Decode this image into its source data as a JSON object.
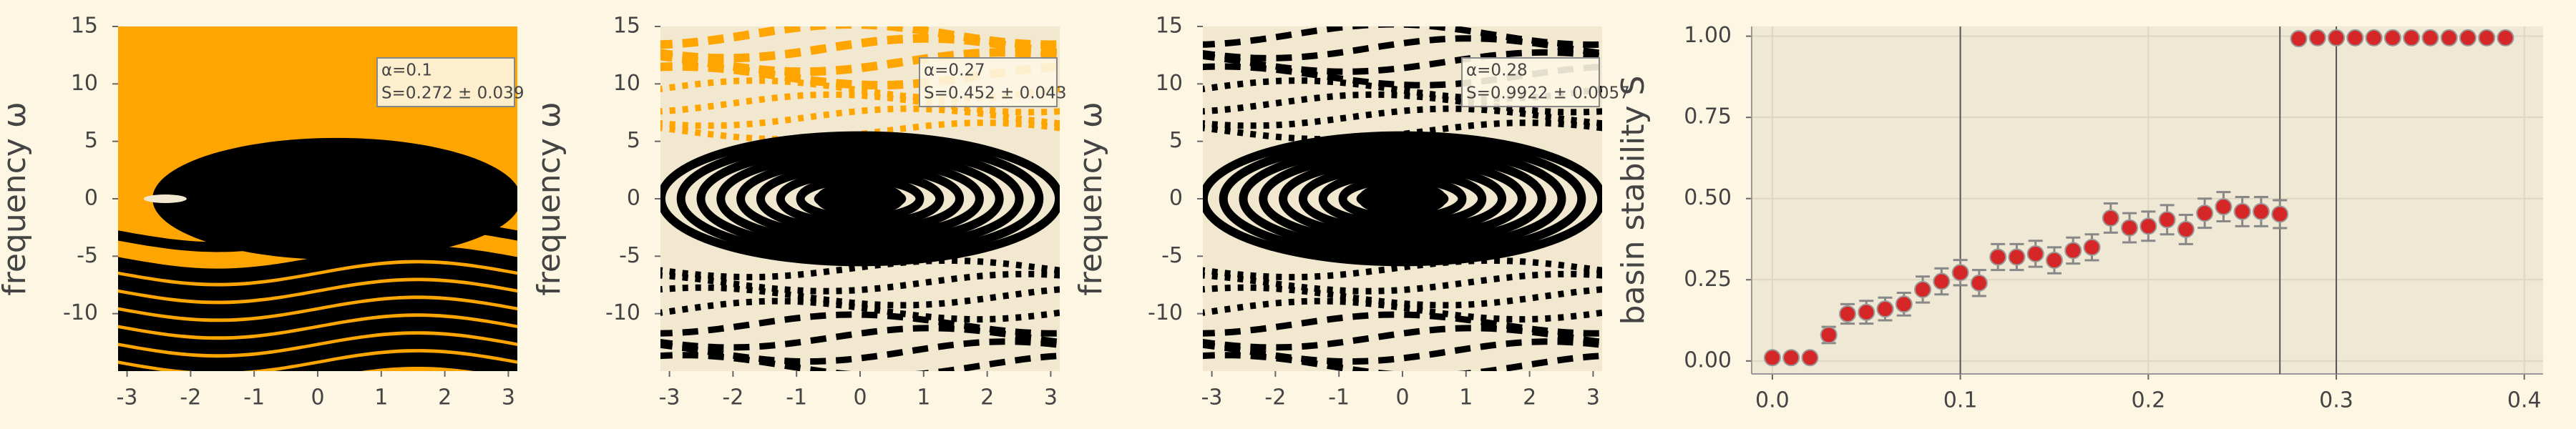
{
  "chart_data": [
    {
      "type": "basin",
      "ylabel": "frequency ω",
      "xlim": [
        -3.1416,
        3.1416
      ],
      "ylim": [
        -15,
        15
      ],
      "xticks": [
        -3,
        -2,
        -1,
        0,
        1,
        2,
        3
      ],
      "yticks": [
        15,
        10,
        5,
        0,
        -5,
        -10
      ],
      "annotation": [
        "α=0.1",
        "S=0.272 ± 0.039"
      ],
      "colors": [
        "#ffa500",
        "#000000",
        "#f2e8cf"
      ]
    },
    {
      "type": "basin",
      "ylabel": "frequency ω",
      "xlim": [
        -3.1416,
        3.1416
      ],
      "ylim": [
        -15,
        15
      ],
      "xticks": [
        -3,
        -2,
        -1,
        0,
        1,
        2,
        3
      ],
      "yticks": [
        15,
        10,
        5,
        0,
        -5,
        -10
      ],
      "annotation": [
        "α=0.27",
        "S=0.452 ± 0.043"
      ],
      "colors": [
        "#f2e8cf",
        "#000000",
        "#ffa500"
      ]
    },
    {
      "type": "basin",
      "ylabel": "frequency ω",
      "xlim": [
        -3.1416,
        3.1416
      ],
      "ylim": [
        -15,
        15
      ],
      "xticks": [
        -3,
        -2,
        -1,
        0,
        1,
        2,
        3
      ],
      "yticks": [
        15,
        10,
        5,
        0,
        -5,
        -10
      ],
      "annotation": [
        "α=0.28",
        "S=0.9922 ± 0.0057"
      ],
      "colors": [
        "#f2e8cf",
        "#000000"
      ]
    },
    {
      "type": "scatter",
      "ylabel": "basin stability S",
      "color": "#d62728",
      "error_color": "#888888",
      "xlim": [
        -0.011,
        0.41
      ],
      "ylim": [
        -0.04,
        1.03
      ],
      "xticks": [
        {
          "value": 0,
          "label": "0.0"
        },
        0.1,
        0.2,
        0.3,
        0.4
      ],
      "yticks": [
        {
          "value": 0,
          "label": "0.00"
        },
        0.25,
        {
          "value": 0.5,
          "label": "0.50"
        },
        0.75,
        {
          "value": 1,
          "label": "1.00"
        }
      ],
      "vlines": [
        0.1,
        0.27,
        0.3
      ],
      "x": [
        0.0,
        0.01,
        0.02,
        0.03,
        0.04,
        0.05,
        0.06,
        0.07,
        0.08,
        0.09,
        0.1,
        0.11,
        0.12,
        0.13,
        0.14,
        0.15,
        0.16,
        0.17,
        0.18,
        0.19,
        0.2,
        0.21,
        0.22,
        0.23,
        0.24,
        0.25,
        0.26,
        0.27,
        0.28,
        0.29,
        0.3,
        0.31,
        0.32,
        0.33,
        0.34,
        0.35,
        0.36,
        0.37,
        0.38,
        0.39
      ],
      "values": [
        0.01,
        0.01,
        0.01,
        0.08,
        0.145,
        0.15,
        0.16,
        0.175,
        0.22,
        0.245,
        0.272,
        0.24,
        0.32,
        0.32,
        0.33,
        0.31,
        0.34,
        0.35,
        0.44,
        0.41,
        0.415,
        0.435,
        0.405,
        0.455,
        0.475,
        0.46,
        0.46,
        0.452,
        0.9922,
        0.995,
        0.995,
        0.995,
        0.995,
        0.995,
        0.995,
        0.995,
        0.995,
        0.995,
        0.995,
        0.995
      ],
      "errors": [
        0.01,
        0.01,
        0.01,
        0.025,
        0.03,
        0.035,
        0.035,
        0.035,
        0.04,
        0.04,
        0.039,
        0.04,
        0.04,
        0.04,
        0.04,
        0.04,
        0.04,
        0.04,
        0.045,
        0.045,
        0.045,
        0.045,
        0.045,
        0.045,
        0.045,
        0.045,
        0.045,
        0.043,
        0.0057,
        0.005,
        0.005,
        0.005,
        0.005,
        0.005,
        0.005,
        0.005,
        0.005,
        0.005,
        0.005,
        0.005
      ]
    }
  ]
}
